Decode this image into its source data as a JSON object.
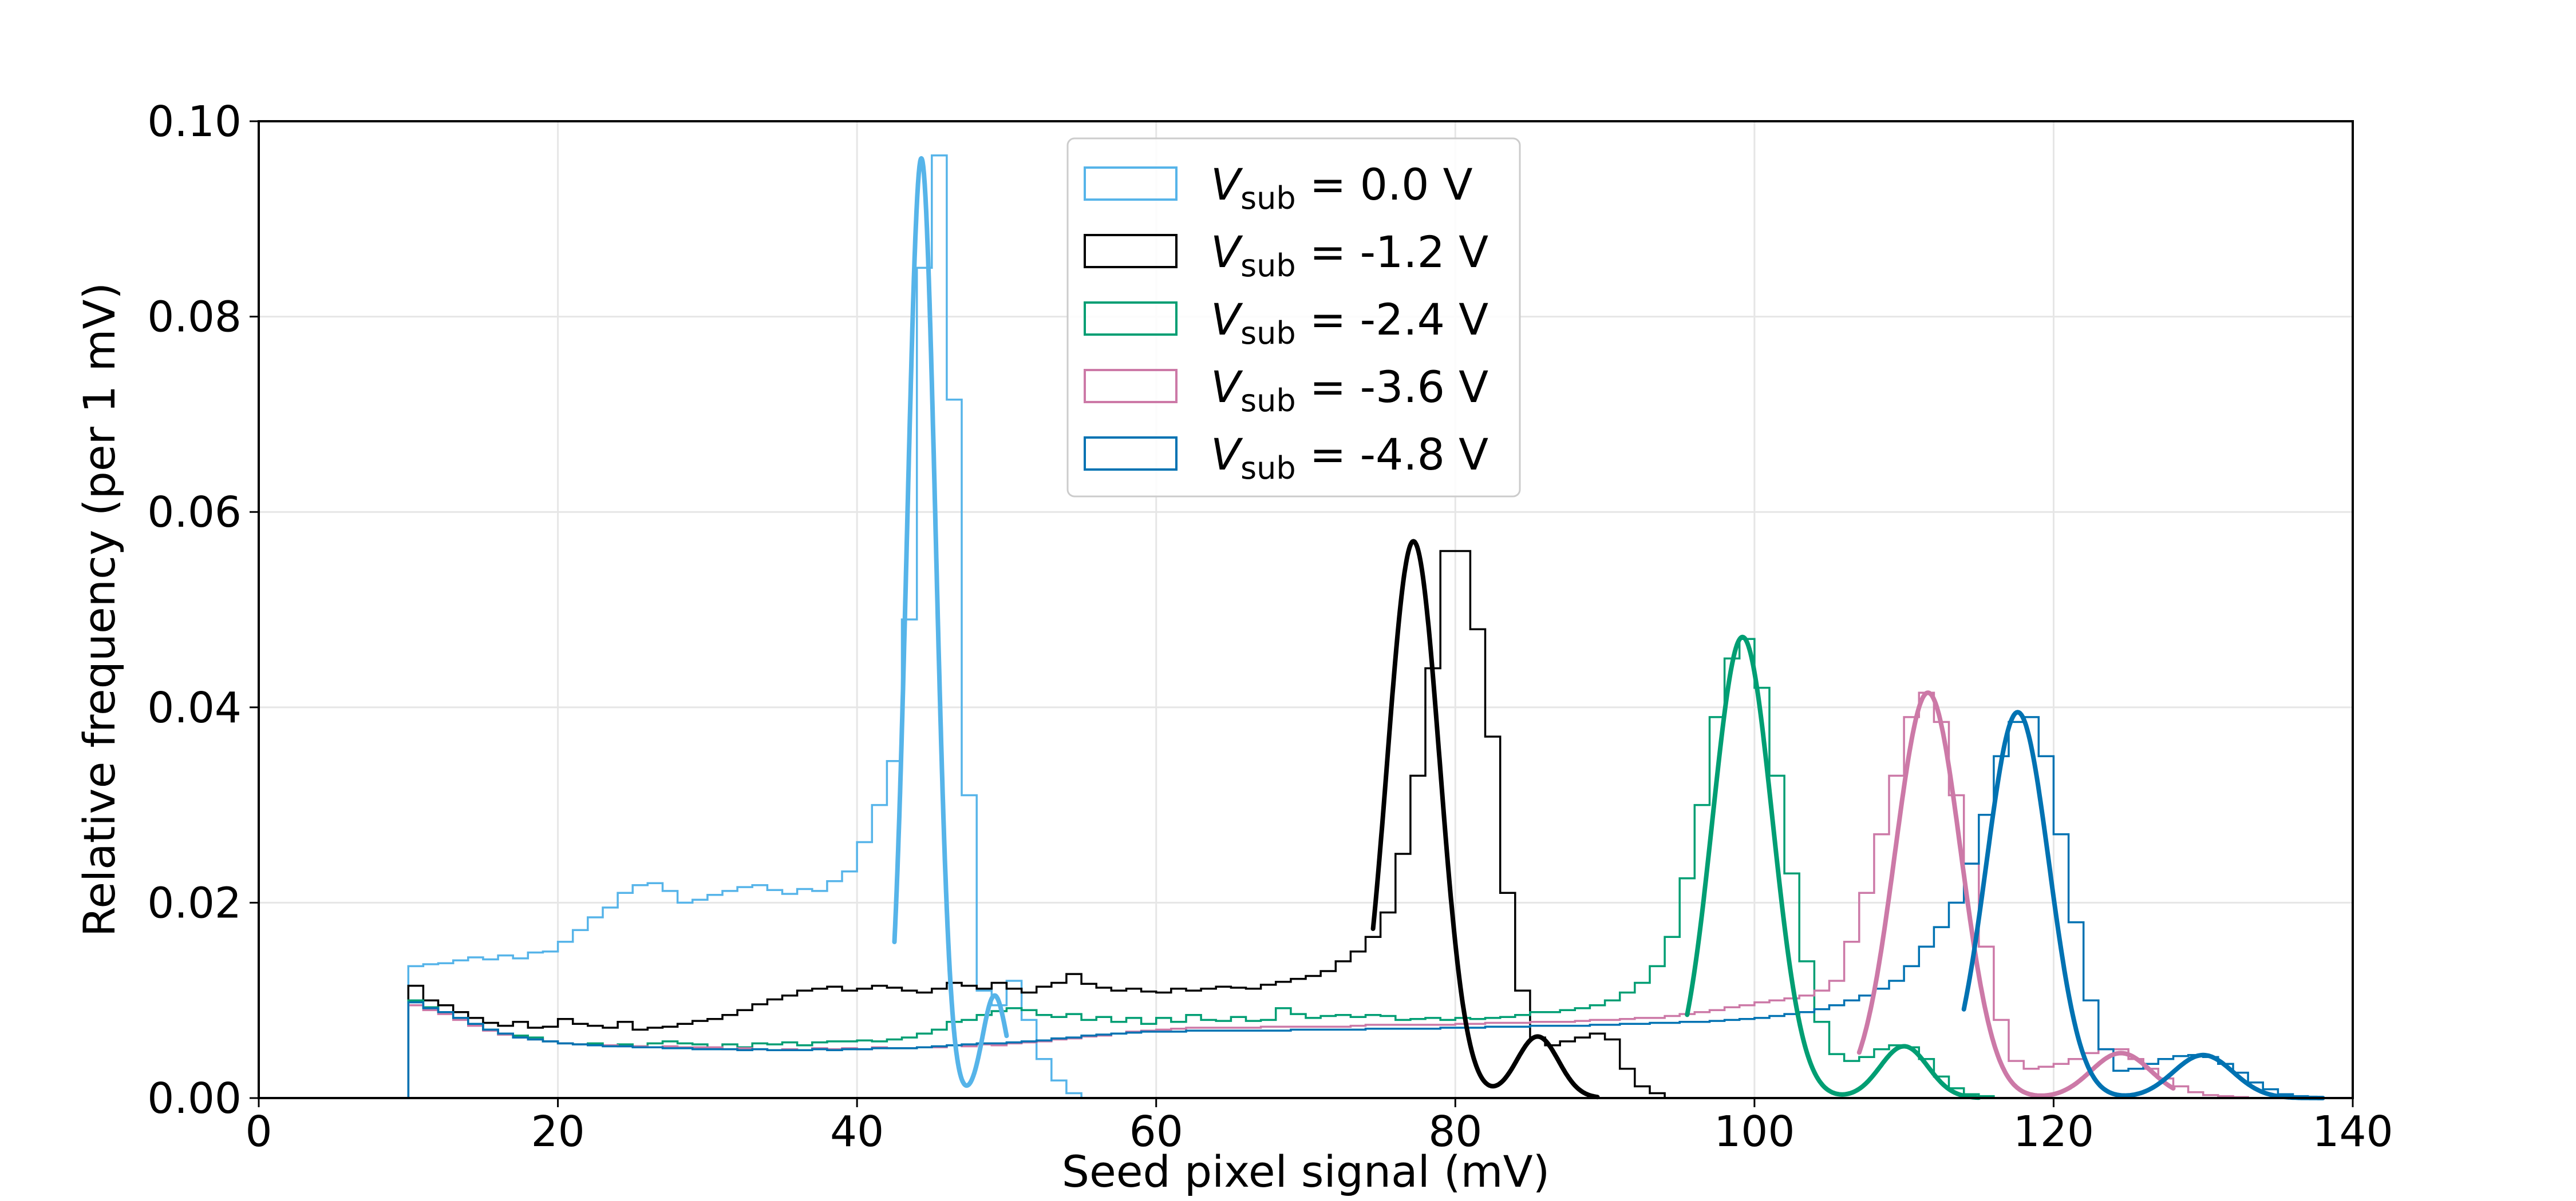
{
  "chart_data": {
    "type": "line",
    "title": "",
    "xlabel": "Seed pixel signal (mV)",
    "ylabel": "Relative frequency (per 1 mV)",
    "xlim": [
      0,
      140
    ],
    "ylim": [
      0,
      0.1
    ],
    "xticks": [
      "0",
      "20",
      "40",
      "60",
      "80",
      "100",
      "120",
      "140"
    ],
    "yticks": [
      "0.00",
      "0.02",
      "0.04",
      "0.06",
      "0.08",
      "0.10"
    ],
    "grid": true,
    "legend_position": "top-center",
    "histogram_bin_width_mV": 1,
    "series": [
      {
        "name": "V_sub = 0.0 V",
        "legend_symbol": "V",
        "legend_sub": "sub",
        "legend_rest": " = 0.0 V",
        "color": "#56B4E9",
        "hist_start": 10,
        "hist_values": [
          0.0135,
          0.0137,
          0.0138,
          0.0141,
          0.0144,
          0.0142,
          0.0146,
          0.0143,
          0.0149,
          0.015,
          0.016,
          0.0172,
          0.0185,
          0.0195,
          0.021,
          0.0218,
          0.022,
          0.0212,
          0.02,
          0.0203,
          0.0208,
          0.0212,
          0.0216,
          0.0218,
          0.0213,
          0.0209,
          0.0214,
          0.0212,
          0.0222,
          0.0232,
          0.0262,
          0.03,
          0.0345,
          0.049,
          0.085,
          0.0965,
          0.0715,
          0.031,
          0.011,
          0.0095,
          0.012,
          0.008,
          0.004,
          0.0018,
          0.0005
        ],
        "fit": {
          "x_range": [
            42.5,
            50.0
          ],
          "peak": {
            "mu": 44.3,
            "sigma": 0.95,
            "amp": 0.0962
          },
          "bump": {
            "mu": 49.2,
            "sigma": 0.8,
            "amp": 0.0105
          }
        }
      },
      {
        "name": "V_sub = -1.2 V",
        "legend_symbol": "V",
        "legend_sub": "sub",
        "legend_rest": " = -1.2 V",
        "color": "#000000",
        "hist_start": 10,
        "hist_values": [
          0.0115,
          0.01,
          0.0095,
          0.0088,
          0.0082,
          0.0077,
          0.0074,
          0.0078,
          0.0072,
          0.0073,
          0.0081,
          0.0076,
          0.0074,
          0.0072,
          0.0078,
          0.007,
          0.0072,
          0.0073,
          0.0076,
          0.0079,
          0.0081,
          0.0085,
          0.009,
          0.0096,
          0.0101,
          0.0105,
          0.011,
          0.0112,
          0.0114,
          0.011,
          0.0112,
          0.0115,
          0.0113,
          0.011,
          0.0108,
          0.0112,
          0.0118,
          0.0115,
          0.0112,
          0.0118,
          0.0112,
          0.0108,
          0.0114,
          0.0118,
          0.0127,
          0.0117,
          0.0113,
          0.011,
          0.0112,
          0.0109,
          0.0108,
          0.0112,
          0.011,
          0.0112,
          0.0114,
          0.0113,
          0.0112,
          0.0116,
          0.0119,
          0.0122,
          0.0125,
          0.013,
          0.014,
          0.015,
          0.0165,
          0.019,
          0.025,
          0.033,
          0.044,
          0.056,
          0.056,
          0.048,
          0.037,
          0.021,
          0.011,
          0.0062,
          0.0054,
          0.0058,
          0.0062,
          0.0066,
          0.006,
          0.003,
          0.0012,
          0.0005
        ],
        "fit": {
          "x_range": [
            74.5,
            89.5
          ],
          "peak": {
            "mu": 77.2,
            "sigma": 1.75,
            "amp": 0.057
          },
          "bump": {
            "mu": 85.5,
            "sigma": 1.4,
            "amp": 0.0063
          }
        }
      },
      {
        "name": "V_sub = -2.4 V",
        "legend_symbol": "V",
        "legend_sub": "sub",
        "legend_rest": " = -2.4 V",
        "color": "#009E73",
        "hist_start": 10,
        "hist_values": [
          0.01,
          0.0093,
          0.0088,
          0.0082,
          0.0076,
          0.007,
          0.0065,
          0.0064,
          0.0062,
          0.0058,
          0.0056,
          0.0055,
          0.0056,
          0.0054,
          0.0055,
          0.0053,
          0.0056,
          0.0058,
          0.0056,
          0.0055,
          0.0052,
          0.0055,
          0.0052,
          0.0056,
          0.0055,
          0.0057,
          0.0054,
          0.0057,
          0.0058,
          0.0058,
          0.0059,
          0.0058,
          0.006,
          0.0062,
          0.0066,
          0.007,
          0.0078,
          0.008,
          0.0085,
          0.0089,
          0.0092,
          0.009,
          0.0085,
          0.0083,
          0.0086,
          0.008,
          0.0083,
          0.0078,
          0.0082,
          0.0076,
          0.0082,
          0.0078,
          0.0085,
          0.008,
          0.0079,
          0.0083,
          0.0079,
          0.008,
          0.0092,
          0.0086,
          0.0082,
          0.0084,
          0.0085,
          0.0083,
          0.0085,
          0.0084,
          0.008,
          0.0081,
          0.0082,
          0.008,
          0.0082,
          0.0081,
          0.0082,
          0.0083,
          0.0085,
          0.0088,
          0.0088,
          0.009,
          0.0092,
          0.0095,
          0.01,
          0.0108,
          0.0118,
          0.0135,
          0.0165,
          0.0225,
          0.03,
          0.039,
          0.045,
          0.047,
          0.042,
          0.033,
          0.023,
          0.014,
          0.0078,
          0.0045,
          0.0038,
          0.0042,
          0.005,
          0.0054,
          0.0052,
          0.004,
          0.0022,
          0.001,
          0.0004,
          0.0002
        ],
        "fit": {
          "x_range": [
            95.5,
            115.0
          ],
          "peak": {
            "mu": 99.2,
            "sigma": 2.0,
            "amp": 0.0472
          },
          "bump": {
            "mu": 110.0,
            "sigma": 1.6,
            "amp": 0.0053
          }
        }
      },
      {
        "name": "V_sub = -3.6 V",
        "legend_symbol": "V",
        "legend_sub": "sub",
        "legend_rest": " = -3.6 V",
        "color": "#CC79A7",
        "hist_start": 10,
        "hist_values": [
          0.0095,
          0.009,
          0.0086,
          0.008,
          0.0074,
          0.0069,
          0.0065,
          0.0062,
          0.006,
          0.0058,
          0.0056,
          0.0055,
          0.0054,
          0.0054,
          0.0053,
          0.0053,
          0.0052,
          0.0053,
          0.0052,
          0.0052,
          0.0052,
          0.005,
          0.0051,
          0.005,
          0.0049,
          0.005,
          0.0049,
          0.0051,
          0.005,
          0.0051,
          0.005,
          0.0052,
          0.0051,
          0.0051,
          0.0052,
          0.0052,
          0.0054,
          0.0053,
          0.0055,
          0.0054,
          0.0056,
          0.0057,
          0.0058,
          0.006,
          0.0061,
          0.0063,
          0.0064,
          0.0066,
          0.0068,
          0.0069,
          0.007,
          0.0071,
          0.0072,
          0.0072,
          0.0072,
          0.0072,
          0.0072,
          0.0073,
          0.0073,
          0.0073,
          0.0073,
          0.0073,
          0.0073,
          0.0074,
          0.0075,
          0.0075,
          0.0075,
          0.0075,
          0.0075,
          0.0075,
          0.0076,
          0.0076,
          0.0077,
          0.0077,
          0.0077,
          0.0078,
          0.0078,
          0.0078,
          0.0079,
          0.008,
          0.008,
          0.0081,
          0.0082,
          0.0082,
          0.0084,
          0.0086,
          0.0088,
          0.009,
          0.0093,
          0.0095,
          0.0098,
          0.01,
          0.0102,
          0.0105,
          0.011,
          0.012,
          0.016,
          0.021,
          0.027,
          0.033,
          0.039,
          0.0415,
          0.0385,
          0.031,
          0.024,
          0.0155,
          0.008,
          0.0038,
          0.003,
          0.0032,
          0.0035,
          0.004,
          0.0046,
          0.005,
          0.005,
          0.004,
          0.003,
          0.002,
          0.0012,
          0.0006,
          0.0003,
          0.0002,
          0.0001
        ],
        "fit": {
          "x_range": [
            107.0,
            128.0
          ],
          "peak": {
            "mu": 111.6,
            "sigma": 2.2,
            "amp": 0.0415
          },
          "bump": {
            "mu": 124.5,
            "sigma": 2.0,
            "amp": 0.0046
          }
        }
      },
      {
        "name": "V_sub = -4.8 V",
        "legend_symbol": "V",
        "legend_sub": "sub",
        "legend_rest": " = -4.8 V",
        "color": "#0072B2",
        "hist_start": 10,
        "hist_values": [
          0.0098,
          0.0092,
          0.0088,
          0.0082,
          0.0076,
          0.007,
          0.0066,
          0.0062,
          0.006,
          0.0058,
          0.0056,
          0.0055,
          0.0054,
          0.0053,
          0.0053,
          0.0052,
          0.0052,
          0.0051,
          0.0051,
          0.005,
          0.005,
          0.005,
          0.0049,
          0.005,
          0.0049,
          0.0049,
          0.0049,
          0.005,
          0.0049,
          0.005,
          0.005,
          0.0051,
          0.0051,
          0.0051,
          0.0052,
          0.0053,
          0.0054,
          0.0055,
          0.0056,
          0.0056,
          0.0057,
          0.0058,
          0.0059,
          0.0061,
          0.0062,
          0.0064,
          0.0065,
          0.0066,
          0.0067,
          0.0068,
          0.0068,
          0.0068,
          0.0069,
          0.0069,
          0.0069,
          0.0069,
          0.0069,
          0.0069,
          0.0069,
          0.007,
          0.007,
          0.007,
          0.007,
          0.007,
          0.0071,
          0.0071,
          0.0071,
          0.0071,
          0.0071,
          0.0072,
          0.0072,
          0.0072,
          0.0073,
          0.0073,
          0.0073,
          0.0074,
          0.0074,
          0.0074,
          0.0074,
          0.0075,
          0.0075,
          0.0076,
          0.0076,
          0.0077,
          0.0077,
          0.0078,
          0.0078,
          0.0079,
          0.008,
          0.0081,
          0.0082,
          0.0084,
          0.0086,
          0.0088,
          0.0091,
          0.0095,
          0.01,
          0.0105,
          0.0112,
          0.012,
          0.0135,
          0.0155,
          0.0175,
          0.02,
          0.024,
          0.029,
          0.035,
          0.0385,
          0.039,
          0.035,
          0.027,
          0.018,
          0.01,
          0.005,
          0.0028,
          0.003,
          0.0035,
          0.004,
          0.0043,
          0.0044,
          0.0042,
          0.0035,
          0.0026,
          0.0016,
          0.0009,
          0.0004,
          0.0002
        ],
        "fit": {
          "x_range": [
            114.0,
            138.0
          ],
          "peak": {
            "mu": 117.6,
            "sigma": 2.1,
            "amp": 0.0395
          },
          "bump": {
            "mu": 130.0,
            "sigma": 2.0,
            "amp": 0.0044
          }
        }
      }
    ]
  }
}
